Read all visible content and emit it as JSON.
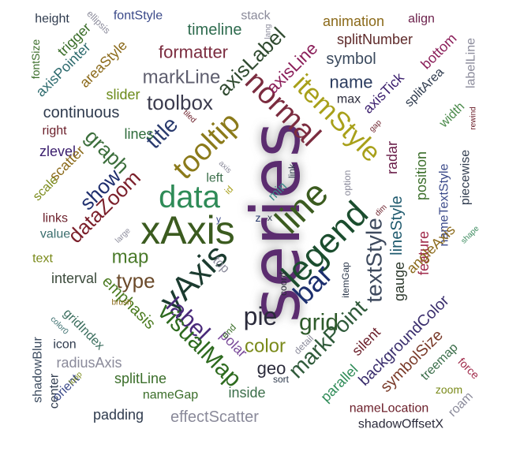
{
  "words": [
    {
      "text": "series",
      "color": "#5b2c6f"
    },
    {
      "text": "xAxis",
      "color": "#3b5b1f"
    },
    {
      "text": "data",
      "color": "#2e8b57"
    },
    {
      "text": "legend",
      "color": "#1b4d2e"
    },
    {
      "text": "yAxis",
      "color": "#1b3b2f"
    },
    {
      "text": "line",
      "color": "#3b5b1f"
    },
    {
      "text": "normal",
      "color": "#7b2c3f"
    },
    {
      "text": "tooltip",
      "color": "#8b7a1a"
    },
    {
      "text": "itemStyle",
      "color": "#a8a01a"
    },
    {
      "text": "bar",
      "color": "#1c2f6e"
    },
    {
      "text": "label",
      "color": "#4a2a7a"
    },
    {
      "text": "textStyle",
      "color": "#3e4a5e"
    },
    {
      "text": "markPoint",
      "color": "#2f5a3a"
    },
    {
      "text": "visualMap",
      "color": "#2e6b1f"
    },
    {
      "text": "pie",
      "color": "#2b2b3b"
    },
    {
      "text": "grid",
      "color": "#2e5a2a"
    },
    {
      "text": "title",
      "color": "#2a3b6e"
    },
    {
      "text": "graph",
      "color": "#3b6e3b"
    },
    {
      "text": "dataZoom",
      "color": "#7b1f2a"
    },
    {
      "text": "show",
      "color": "#1f2f6e"
    },
    {
      "text": "toolbox",
      "color": "#3b3b4e"
    },
    {
      "text": "axisLabel",
      "color": "#2f4a2f"
    },
    {
      "text": "axisLine",
      "color": "#8b1f5a"
    },
    {
      "text": "type",
      "color": "#6b4a2a"
    },
    {
      "text": "map",
      "color": "#4a7a2a"
    },
    {
      "text": "color",
      "color": "#7a8a1a"
    },
    {
      "text": "emphasis",
      "color": "#4a7a1f"
    },
    {
      "text": "markLine",
      "color": "#5e5e6e"
    },
    {
      "text": "formatter",
      "color": "#7b2c3f"
    },
    {
      "text": "timeline",
      "color": "#2e6b4e"
    },
    {
      "text": "name",
      "color": "#2a3b5e"
    },
    {
      "text": "lineStyle",
      "color": "#1f5a6e"
    },
    {
      "text": "gauge",
      "color": "#2f3b2f"
    },
    {
      "text": "radar",
      "color": "#6b1f4a"
    },
    {
      "text": "axisTick",
      "color": "#3b1f6e"
    },
    {
      "text": "feature",
      "color": "#a02a4a"
    },
    {
      "text": "position",
      "color": "#3b6e2a"
    },
    {
      "text": "backgroundColor",
      "color": "#3b2f6e"
    },
    {
      "text": "silent",
      "color": "#6b1f2a"
    },
    {
      "text": "parallel",
      "color": "#2e8b57"
    },
    {
      "text": "geo",
      "color": "#2b2b3b"
    },
    {
      "text": "polar",
      "color": "#7a4a9a"
    },
    {
      "text": "inside",
      "color": "#3b6e4a"
    },
    {
      "text": "effectScatter",
      "color": "#8a8a9a"
    },
    {
      "text": "nameGap",
      "color": "#3b6e2a"
    },
    {
      "text": "padding",
      "color": "#2f3b4e"
    },
    {
      "text": "splitLine",
      "color": "#3b6e2a"
    },
    {
      "text": "radiusAxis",
      "color": "#8a8a9a"
    },
    {
      "text": "icon",
      "color": "#2f3b4e"
    },
    {
      "text": "gridIndex",
      "color": "#3b6e5e"
    },
    {
      "text": "interval",
      "color": "#3b4a3b"
    },
    {
      "text": "text",
      "color": "#7a8a1a"
    },
    {
      "text": "value",
      "color": "#3b6e6e"
    },
    {
      "text": "links",
      "color": "#6b1f2a"
    },
    {
      "text": "scale",
      "color": "#7a8a1a"
    },
    {
      "text": "zlevel",
      "color": "#3b1f6e"
    },
    {
      "text": "right",
      "color": "#6b1f2a"
    },
    {
      "text": "continuous",
      "color": "#2f3b4e"
    },
    {
      "text": "axisPointer",
      "color": "#2e6b6e"
    },
    {
      "text": "areaStyle",
      "color": "#8b6a1a"
    },
    {
      "text": "slider",
      "color": "#6b8a1a"
    },
    {
      "text": "lines",
      "color": "#2e6b3b"
    },
    {
      "text": "scatter",
      "color": "#8b6a1a"
    },
    {
      "text": "height",
      "color": "#2f3b4e"
    },
    {
      "text": "fontStyle",
      "color": "#3b4a8a"
    },
    {
      "text": "ellipsis",
      "color": "#8a8a9a"
    },
    {
      "text": "trigger",
      "color": "#3b6e2a"
    },
    {
      "text": "fontSize",
      "color": "#3b6e2a"
    },
    {
      "text": "stack",
      "color": "#8a8a9a"
    },
    {
      "text": "lang",
      "color": "#8a8a9a"
    },
    {
      "text": "animation",
      "color": "#8b6a1a"
    },
    {
      "text": "align",
      "color": "#6b1f4a"
    },
    {
      "text": "splitNumber",
      "color": "#5e2a2a"
    },
    {
      "text": "symbol",
      "color": "#3b4a5e"
    },
    {
      "text": "bottom",
      "color": "#8b1f5a"
    },
    {
      "text": "labelLine",
      "color": "#8a8a9a"
    },
    {
      "text": "splitArea",
      "color": "#2f3b4e"
    },
    {
      "text": "max",
      "color": "#2b2b3b"
    },
    {
      "text": "width",
      "color": "#4a8a4a"
    },
    {
      "text": "rewind",
      "color": "#6b1f2a"
    },
    {
      "text": "piecewise",
      "color": "#2f3b4e"
    },
    {
      "text": "nameTextStyle",
      "color": "#3b4a8a"
    },
    {
      "text": "angleAxis",
      "color": "#8b6a1a"
    },
    {
      "text": "shape",
      "color": "#3b8a5e"
    },
    {
      "text": "roam",
      "color": "#8a8a9a"
    },
    {
      "text": "force",
      "color": "#a02a4a"
    },
    {
      "text": "zoom",
      "color": "#7a8a1a"
    },
    {
      "text": "treemap",
      "color": "#3b6e4a"
    },
    {
      "text": "symbolSize",
      "color": "#7a3b2a"
    },
    {
      "text": "nameLocation",
      "color": "#6b1f2a"
    },
    {
      "text": "shadowOffsetX",
      "color": "#2b2b3b"
    },
    {
      "text": "shadowBlur",
      "color": "#3b4a5e"
    },
    {
      "text": "center",
      "color": "#2f3b4e"
    },
    {
      "text": "orient",
      "color": "#3b4a8a"
    },
    {
      "text": "loop",
      "color": "#7a8a1a"
    },
    {
      "text": "color0",
      "color": "#3b6e6e"
    },
    {
      "text": "brush",
      "color": "#8b6a1a"
    },
    {
      "text": "large",
      "color": "#8a8a9a"
    },
    {
      "text": "left",
      "color": "#3b6e4a"
    },
    {
      "text": "tiled",
      "color": "#6b1f2a"
    },
    {
      "text": "axis",
      "color": "#8a8a9a"
    },
    {
      "text": "id",
      "color": "#a8a01a"
    },
    {
      "text": "y",
      "color": "#3b4a8a"
    },
    {
      "text": "z",
      "color": "#2a3b6e"
    },
    {
      "text": "x",
      "color": "#2f3b4e"
    },
    {
      "text": "min",
      "color": "#3b8a8a"
    },
    {
      "text": "link",
      "color": "#2f3b4e"
    },
    {
      "text": "option",
      "color": "#8a8a9a"
    },
    {
      "text": "gap",
      "color": "#6b1f2a"
    },
    {
      "text": "dim",
      "color": "#6b1f2a"
    },
    {
      "text": "itemGap",
      "color": "#2f3b4e"
    },
    {
      "text": "coord",
      "color": "#2b2b3b"
    },
    {
      "text": "top",
      "color": "#8a8a9a"
    },
    {
      "text": "end",
      "color": "#3b6e2a"
    },
    {
      "text": "detail",
      "color": "#8a8a9a"
    },
    {
      "text": "sort",
      "color": "#2f3b4e"
    }
  ]
}
